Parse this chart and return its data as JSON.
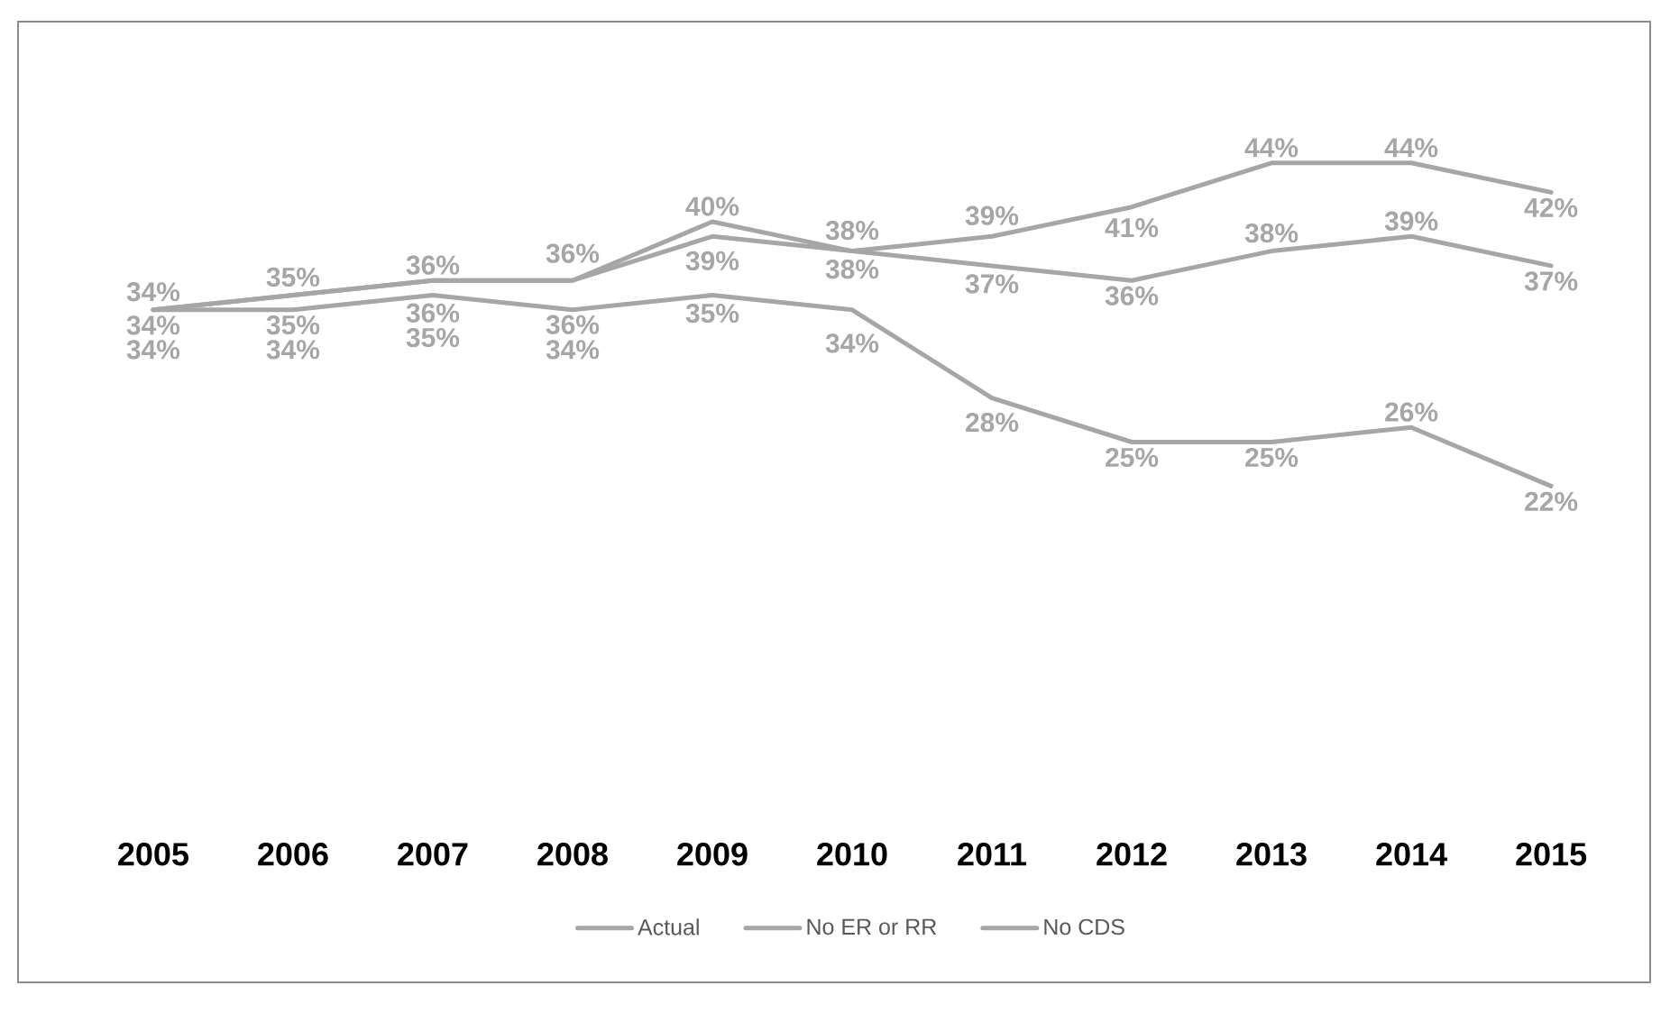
{
  "chart_data": {
    "type": "line",
    "categories": [
      "2005",
      "2006",
      "2007",
      "2008",
      "2009",
      "2010",
      "2011",
      "2012",
      "2013",
      "2014",
      "2015"
    ],
    "series": [
      {
        "name": "Actual",
        "color": "#a6a6a6",
        "values": [
          34,
          34,
          35,
          34,
          35,
          34,
          28,
          25,
          25,
          26,
          22
        ],
        "value_labels": [
          "34%",
          "34%",
          "35%",
          "34%",
          "35%",
          "34%",
          "28%",
          "25%",
          "25%",
          "26%",
          "22%"
        ]
      },
      {
        "name": "No ER or RR",
        "color": "#a6a6a6",
        "values": [
          34,
          35,
          36,
          36,
          39,
          38,
          37,
          36,
          38,
          39,
          37
        ],
        "value_labels": [
          "34%",
          "35%",
          "36%",
          "36%",
          "39%",
          "38%",
          "37%",
          "36%",
          "38%",
          "39%",
          "37%"
        ]
      },
      {
        "name": "No CDS",
        "color": "#a6a6a6",
        "values": [
          34,
          35,
          36,
          36,
          40,
          38,
          39,
          41,
          44,
          44,
          42
        ],
        "value_labels": [
          "34%",
          "35%",
          "36%",
          "36%",
          "40%",
          "38%",
          "39%",
          "41%",
          "44%",
          "44%",
          "42%"
        ]
      }
    ],
    "tick_labels": "x",
    "legend": "bottom",
    "marker": "none",
    "line_style": "solid"
  }
}
